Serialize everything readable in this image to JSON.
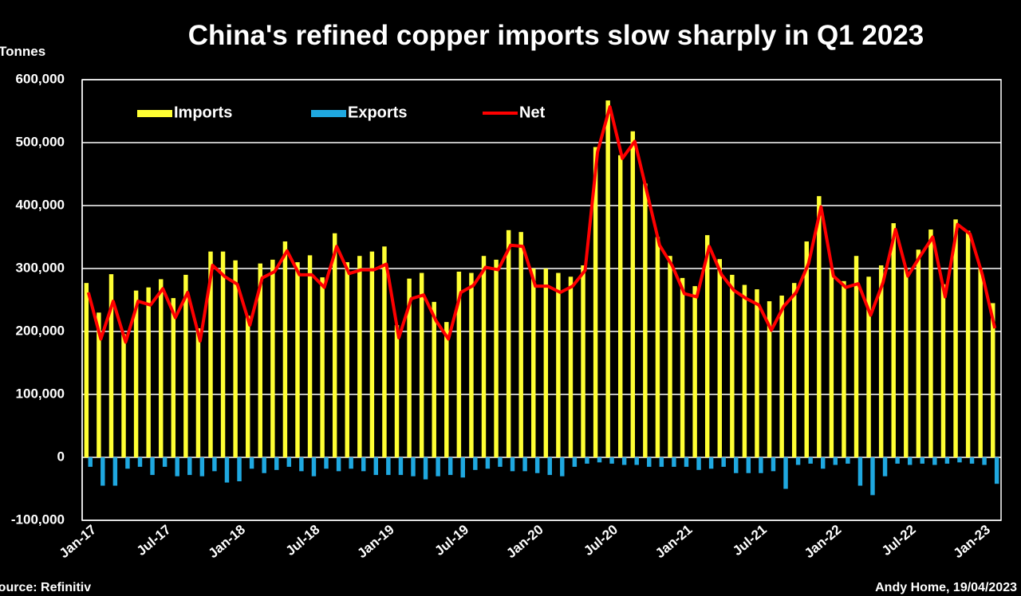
{
  "chart_data": {
    "type": "bar",
    "title": "China's refined copper imports slow sharply in Q1 2023",
    "y_label": "Tonnes",
    "source": "Source: Refinitiv",
    "credit": "Andy Home, 19/04/2023",
    "categories": [
      "Jan-17",
      null,
      null,
      null,
      null,
      null,
      "Jul-17",
      null,
      null,
      null,
      null,
      null,
      "Jan-18",
      null,
      null,
      null,
      null,
      null,
      "Jul-18",
      null,
      null,
      null,
      null,
      null,
      "Jan-19",
      null,
      null,
      null,
      null,
      null,
      "Jul-19",
      null,
      null,
      null,
      null,
      null,
      "Jan-20",
      null,
      null,
      null,
      null,
      null,
      "Jul-20",
      null,
      null,
      null,
      null,
      null,
      "Jan-21",
      null,
      null,
      null,
      null,
      null,
      "Jul-21",
      null,
      null,
      null,
      null,
      null,
      "Jan-22",
      null,
      null,
      null,
      null,
      null,
      "Jul-22",
      null,
      null,
      null,
      null,
      null,
      "Jan-23",
      null
    ],
    "series": [
      {
        "name": "Imports",
        "type": "bar",
        "color": "#ffff33",
        "values": [
          277000,
          230000,
          291000,
          196000,
          265000,
          270000,
          283000,
          253000,
          290000,
          205000,
          327000,
          327000,
          313000,
          225000,
          308000,
          314000,
          343000,
          310000,
          321000,
          286000,
          356000,
          310000,
          320000,
          327000,
          335000,
          210000,
          284000,
          293000,
          247000,
          215000,
          295000,
          293000,
          320000,
          314000,
          361000,
          358000,
          300000,
          300000,
          293000,
          287000,
          305000,
          493000,
          567000,
          480000,
          518000,
          435000,
          350000,
          320000,
          285000,
          272000,
          353000,
          315000,
          290000,
          274000,
          267000,
          248000,
          257000,
          277000,
          343000,
          415000,
          300000,
          280000,
          320000,
          287000,
          305000,
          372000,
          300000,
          330000,
          362000,
          275000,
          378000,
          360000,
          300000,
          245000
        ]
      },
      {
        "name": "Exports",
        "type": "bar",
        "color": "#1fa8e0",
        "values": [
          -15000,
          -45000,
          -45000,
          -18000,
          -15000,
          -28000,
          -15000,
          -30000,
          -28000,
          -30000,
          -22000,
          -40000,
          -38000,
          -18000,
          -25000,
          -20000,
          -15000,
          -22000,
          -30000,
          -18000,
          -22000,
          -18000,
          -22000,
          -28000,
          -28000,
          -28000,
          -30000,
          -35000,
          -30000,
          -28000,
          -32000,
          -20000,
          -18000,
          -15000,
          -22000,
          -22000,
          -25000,
          -28000,
          -30000,
          -15000,
          -10000,
          -8000,
          -10000,
          -12000,
          -12000,
          -15000,
          -15000,
          -15000,
          -15000,
          -20000,
          -18000,
          -15000,
          -25000,
          -25000,
          -25000,
          -22000,
          -50000,
          -12000,
          -10000,
          -18000,
          -12000,
          -10000,
          -45000,
          -60000,
          -30000,
          -10000,
          -12000,
          -10000,
          -12000,
          -10000,
          -8000,
          -10000,
          -12000,
          -42000
        ]
      },
      {
        "name": "Net",
        "type": "line",
        "color": "#ff0000",
        "values": [
          262000,
          188000,
          248000,
          183000,
          248000,
          242000,
          268000,
          222000,
          262000,
          185000,
          305000,
          287000,
          275000,
          210000,
          285000,
          295000,
          328000,
          290000,
          290000,
          270000,
          335000,
          292000,
          298000,
          298000,
          307000,
          190000,
          252000,
          258000,
          217000,
          188000,
          262000,
          273000,
          302000,
          298000,
          337000,
          335000,
          272000,
          272000,
          262000,
          272000,
          297000,
          485000,
          557000,
          475000,
          502000,
          420000,
          337000,
          305000,
          260000,
          255000,
          335000,
          290000,
          265000,
          252000,
          242000,
          202000,
          240000,
          262000,
          308000,
          398000,
          288000,
          270000,
          276000,
          226000,
          278000,
          362000,
          288000,
          320000,
          350000,
          255000,
          370000,
          355000,
          290000,
          205000
        ]
      }
    ],
    "ylim": [
      -100000,
      600000
    ],
    "yticks": [
      {
        "value": -100000,
        "label": "-100,000"
      },
      0,
      {
        "value": 100000,
        "label": "100,000"
      },
      {
        "value": 200000,
        "label": "200,000"
      },
      {
        "value": 300000,
        "label": "300,000"
      },
      {
        "value": 400000,
        "label": "400,000"
      },
      {
        "value": 500000,
        "label": "500,000"
      },
      {
        "value": 600000,
        "label": "600,000"
      }
    ],
    "grid": true,
    "legend": "top-left"
  }
}
